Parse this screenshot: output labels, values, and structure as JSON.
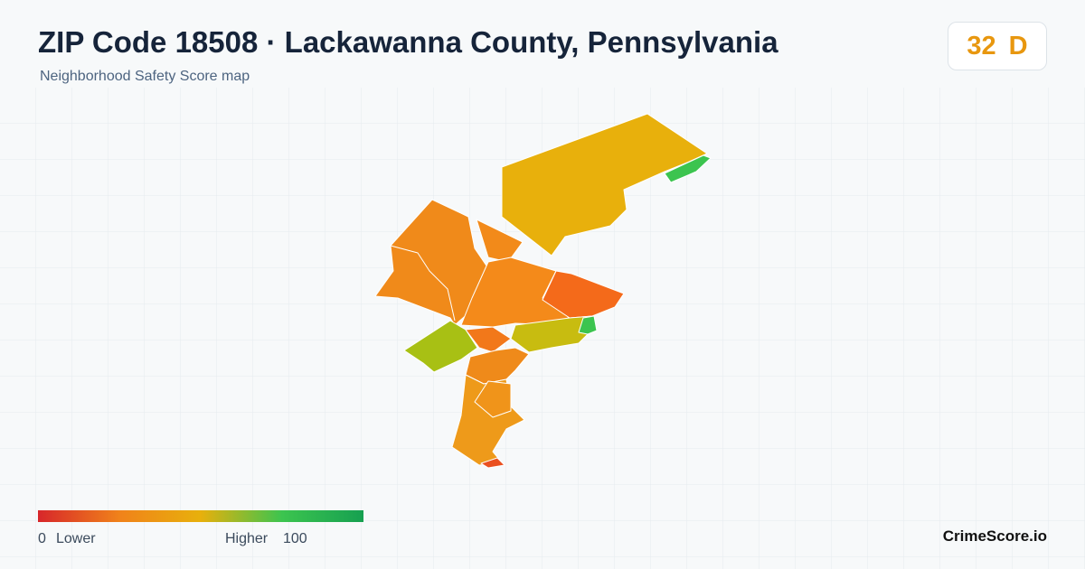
{
  "header": {
    "title": "ZIP Code 18508 · Lackawanna County, Pennsylvania",
    "subtitle": "Neighborhood Safety Score map"
  },
  "badge": {
    "score": 32,
    "grade": "D"
  },
  "legend": {
    "min": 0,
    "low_label": "Lower",
    "high_label": "Higher",
    "max": 100
  },
  "footer": {
    "brand": "CrimeScore.io"
  }
}
